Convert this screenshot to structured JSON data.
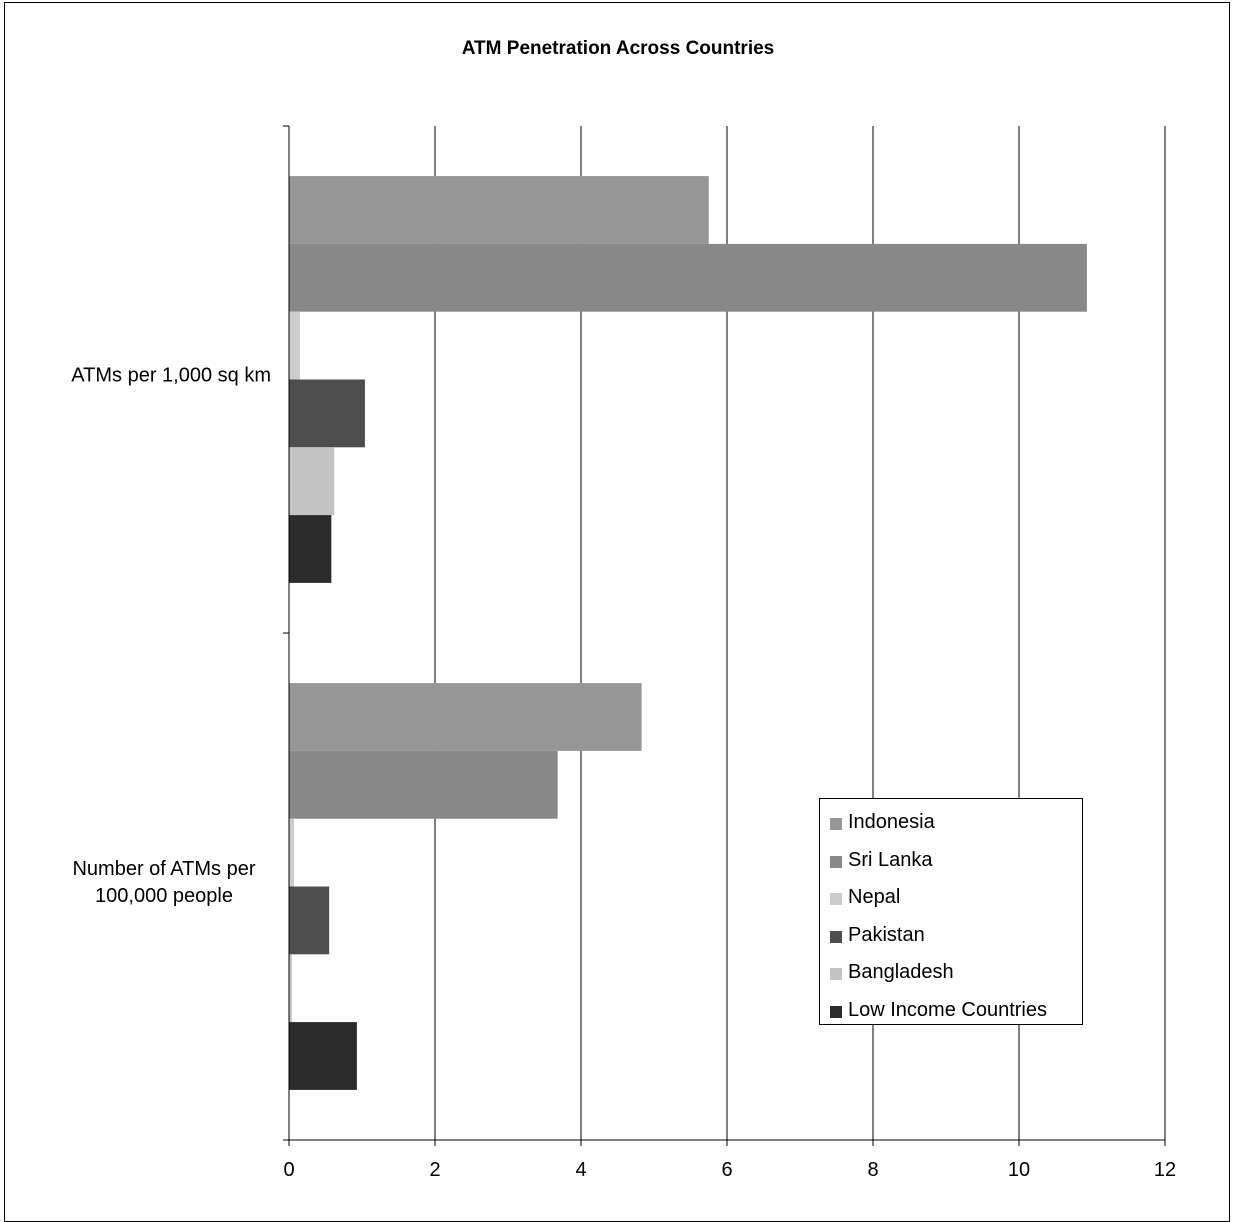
{
  "chart_data": {
    "type": "bar",
    "orientation": "horizontal",
    "title": "ATM Penetration Across Countries",
    "categories": [
      [
        "ATMs per 1,000 sq km"
      ],
      [
        "Number of ATMs per",
        "100,000 people"
      ]
    ],
    "xlim": [
      0,
      12
    ],
    "xticks": [
      0,
      2,
      4,
      6,
      8,
      10,
      12
    ],
    "grid": "vertical",
    "legend_position": "bottom-right",
    "series": [
      {
        "name": "Indonesia",
        "color": "#969696",
        "values": [
          5.75,
          4.83
        ]
      },
      {
        "name": "Sri Lanka",
        "color": "#888888",
        "values": [
          10.93,
          3.68
        ]
      },
      {
        "name": "Nepal",
        "color": "#cccccc",
        "values": [
          0.15,
          0.07
        ]
      },
      {
        "name": "Pakistan",
        "color": "#4d4d4d",
        "values": [
          1.04,
          0.55
        ]
      },
      {
        "name": "Bangladesh",
        "color": "#c4c4c4",
        "values": [
          0.62,
          0.04
        ]
      },
      {
        "name": "Low Income Countries",
        "color": "#2b2b2b",
        "values": [
          0.58,
          0.93
        ]
      }
    ]
  }
}
